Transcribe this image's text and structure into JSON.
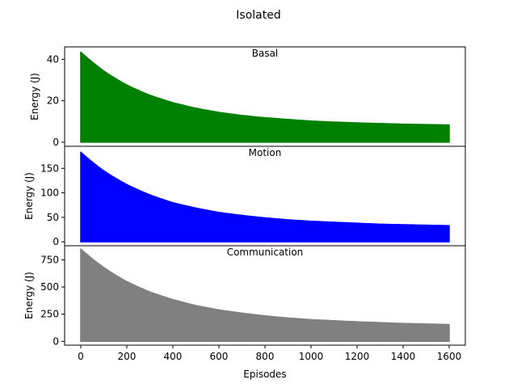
{
  "figure": {
    "title": "Isolated"
  },
  "chart_data": [
    {
      "type": "area",
      "title": "Basal",
      "ylabel": "Energy (J)",
      "xlabel": "",
      "xlim": [
        -70,
        1670
      ],
      "ylim": [
        -2,
        46
      ],
      "xticks": [],
      "yticks": [
        0,
        20,
        40
      ],
      "color": "#008000",
      "series": [
        {
          "x": [
            0,
            50,
            100,
            200,
            300,
            400,
            500,
            600,
            700,
            800,
            900,
            1000,
            1100,
            1200,
            1300,
            1400,
            1500,
            1600
          ],
          "values": [
            43.5,
            38.7,
            34.4,
            27.6,
            22.7,
            19.1,
            16.4,
            14.4,
            12.9,
            11.8,
            11.0,
            10.2,
            9.7,
            9.3,
            9.0,
            8.7,
            8.5,
            8.3
          ]
        }
      ]
    },
    {
      "type": "area",
      "title": "Motion",
      "ylabel": "Energy (J)",
      "xlabel": "",
      "xlim": [
        -70,
        1670
      ],
      "ylim": [
        -8,
        195
      ],
      "xticks": [],
      "yticks": [
        0,
        50,
        100,
        150
      ],
      "color": "#0000ff",
      "series": [
        {
          "x": [
            0,
            50,
            100,
            200,
            300,
            400,
            500,
            600,
            700,
            800,
            900,
            1000,
            1100,
            1200,
            1300,
            1400,
            1500,
            1600
          ],
          "values": [
            183,
            163,
            145,
            117,
            96,
            80,
            69,
            60,
            54,
            49,
            45,
            42,
            40,
            38,
            36,
            35,
            34,
            33
          ]
        }
      ]
    },
    {
      "type": "area",
      "title": "Communication",
      "ylabel": "Energy (J)",
      "xlabel": "Episodes",
      "xlim": [
        -70,
        1670
      ],
      "ylim": [
        -35,
        880
      ],
      "xticks": [
        0,
        200,
        400,
        600,
        800,
        1000,
        1200,
        1400,
        1600
      ],
      "yticks": [
        0,
        250,
        500,
        750
      ],
      "color": "#808080",
      "series": [
        {
          "x": [
            0,
            50,
            100,
            200,
            300,
            400,
            500,
            600,
            700,
            800,
            900,
            1000,
            1100,
            1200,
            1300,
            1400,
            1500,
            1600
          ],
          "values": [
            850,
            760,
            680,
            550,
            455,
            385,
            330,
            290,
            260,
            235,
            215,
            200,
            190,
            180,
            172,
            165,
            160,
            155
          ]
        }
      ]
    }
  ]
}
